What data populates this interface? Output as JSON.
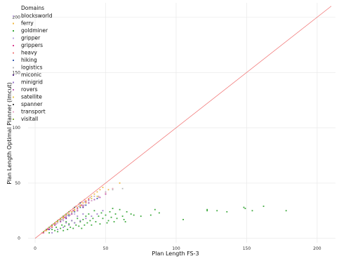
{
  "chart_data": {
    "type": "scatter",
    "title": "",
    "xlabel": "Plan Length FS-3",
    "ylabel": "Plan Length Optimal Planner (lmcut)",
    "xlim": [
      -5,
      213
    ],
    "ylim": [
      -4,
      213
    ],
    "x_ticks": [
      0,
      50,
      100,
      150,
      200
    ],
    "y_ticks": [
      0,
      50,
      100,
      150,
      200
    ],
    "grid": true,
    "legend": {
      "title": "Domains",
      "placement": "top-left"
    },
    "reference_line": {
      "from": [
        0,
        0
      ],
      "to": [
        210,
        210
      ],
      "color": "#f06a6a"
    },
    "series": [
      {
        "name": "blocksworld",
        "color": "#b8a0d8",
        "points": [
          [
            8,
            8
          ],
          [
            10,
            10
          ],
          [
            12,
            12
          ],
          [
            14,
            12
          ],
          [
            16,
            14
          ],
          [
            18,
            16
          ],
          [
            20,
            18
          ],
          [
            22,
            20
          ],
          [
            24,
            22
          ],
          [
            26,
            24
          ],
          [
            28,
            26
          ],
          [
            30,
            28
          ],
          [
            32,
            30
          ],
          [
            34,
            30
          ],
          [
            36,
            32
          ],
          [
            38,
            34
          ],
          [
            40,
            36
          ],
          [
            42,
            38
          ],
          [
            20,
            16
          ],
          [
            24,
            20
          ],
          [
            28,
            22
          ]
        ]
      },
      {
        "name": "ferry",
        "color": "#f0b840",
        "points": [
          [
            6,
            6
          ],
          [
            8,
            7
          ],
          [
            10,
            9
          ],
          [
            12,
            11
          ],
          [
            14,
            13
          ],
          [
            16,
            15
          ],
          [
            18,
            17
          ],
          [
            20,
            19
          ],
          [
            22,
            21
          ],
          [
            24,
            22
          ],
          [
            26,
            24
          ],
          [
            28,
            26
          ],
          [
            30,
            28
          ],
          [
            32,
            30
          ],
          [
            34,
            32
          ],
          [
            36,
            34
          ],
          [
            38,
            36
          ],
          [
            40,
            38
          ],
          [
            42,
            40
          ],
          [
            44,
            42
          ],
          [
            46,
            44
          ],
          [
            48,
            46
          ],
          [
            50,
            40
          ],
          [
            52,
            44
          ],
          [
            55,
            45
          ],
          [
            60,
            50
          ]
        ]
      },
      {
        "name": "goldminer",
        "color": "#3aa83a",
        "points": [
          [
            10,
            5
          ],
          [
            12,
            8
          ],
          [
            14,
            7
          ],
          [
            15,
            10
          ],
          [
            16,
            6
          ],
          [
            18,
            9
          ],
          [
            19,
            12
          ],
          [
            20,
            7
          ],
          [
            21,
            11
          ],
          [
            22,
            15
          ],
          [
            23,
            8
          ],
          [
            24,
            13
          ],
          [
            25,
            10
          ],
          [
            26,
            16
          ],
          [
            27,
            9
          ],
          [
            28,
            14
          ],
          [
            29,
            12
          ],
          [
            30,
            18
          ],
          [
            31,
            11
          ],
          [
            32,
            15
          ],
          [
            33,
            9
          ],
          [
            34,
            17
          ],
          [
            35,
            12
          ],
          [
            36,
            20
          ],
          [
            37,
            14
          ],
          [
            38,
            22
          ],
          [
            39,
            16
          ],
          [
            40,
            12
          ],
          [
            41,
            18
          ],
          [
            42,
            25
          ],
          [
            43,
            15
          ],
          [
            45,
            20
          ],
          [
            46,
            13
          ],
          [
            47,
            23
          ],
          [
            48,
            18
          ],
          [
            50,
            21
          ],
          [
            51,
            14
          ],
          [
            52,
            16
          ],
          [
            53,
            24
          ],
          [
            54,
            19
          ],
          [
            55,
            27
          ],
          [
            56,
            15
          ],
          [
            57,
            22
          ],
          [
            58,
            18
          ],
          [
            60,
            26
          ],
          [
            62,
            20
          ],
          [
            63,
            17
          ],
          [
            64,
            15
          ],
          [
            65,
            24
          ],
          [
            68,
            22
          ],
          [
            70,
            21
          ],
          [
            75,
            20
          ],
          [
            82,
            21
          ],
          [
            85,
            26
          ],
          [
            88,
            23
          ],
          [
            105,
            17
          ],
          [
            122,
            26
          ],
          [
            122,
            25
          ],
          [
            129,
            25
          ],
          [
            136,
            24
          ],
          [
            148,
            28
          ],
          [
            149,
            27
          ],
          [
            154,
            25
          ],
          [
            162,
            29
          ],
          [
            178,
            25
          ]
        ]
      },
      {
        "name": "gripper",
        "color": "#b8a8e0",
        "points": [
          [
            11,
            9
          ],
          [
            15,
            13
          ],
          [
            19,
            17
          ],
          [
            23,
            21
          ],
          [
            27,
            25
          ],
          [
            31,
            29
          ],
          [
            35,
            33
          ],
          [
            39,
            37
          ]
        ]
      },
      {
        "name": "grippers",
        "color": "#d84090",
        "points": [
          [
            6,
            5
          ],
          [
            9,
            8
          ],
          [
            12,
            10
          ],
          [
            15,
            13
          ],
          [
            18,
            16
          ],
          [
            21,
            19
          ],
          [
            24,
            22
          ],
          [
            27,
            25
          ],
          [
            30,
            27
          ],
          [
            33,
            30
          ],
          [
            36,
            33
          ],
          [
            38,
            35
          ]
        ]
      },
      {
        "name": "heavy",
        "color": "#f08080",
        "points": [
          [
            5,
            5
          ],
          [
            7,
            7
          ],
          [
            9,
            9
          ],
          [
            11,
            11
          ],
          [
            13,
            13
          ],
          [
            15,
            15
          ],
          [
            17,
            17
          ],
          [
            19,
            19
          ],
          [
            21,
            21
          ],
          [
            23,
            23
          ],
          [
            25,
            25
          ],
          [
            27,
            27
          ],
          [
            29,
            29
          ],
          [
            31,
            31
          ],
          [
            33,
            33
          ],
          [
            35,
            35
          ]
        ]
      },
      {
        "name": "hiking",
        "color": "#3a5fb0",
        "points": [
          [
            20,
            18
          ],
          [
            24,
            21
          ],
          [
            28,
            24
          ],
          [
            32,
            28
          ],
          [
            36,
            30
          ],
          [
            40,
            34
          ],
          [
            44,
            36
          ]
        ]
      },
      {
        "name": "logistics",
        "color": "#b8b8b8",
        "points": [
          [
            18,
            16
          ],
          [
            22,
            20
          ],
          [
            26,
            23
          ],
          [
            30,
            26
          ],
          [
            34,
            30
          ],
          [
            38,
            32
          ],
          [
            45,
            38
          ],
          [
            50,
            42
          ],
          [
            55,
            44
          ],
          [
            62,
            45
          ]
        ]
      },
      {
        "name": "miconic",
        "color": "#5a2a8a",
        "points": [
          [
            10,
            8
          ],
          [
            14,
            12
          ],
          [
            18,
            15
          ],
          [
            22,
            18
          ],
          [
            26,
            22
          ],
          [
            30,
            25
          ],
          [
            34,
            28
          ],
          [
            38,
            32
          ],
          [
            42,
            35
          ]
        ]
      },
      {
        "name": "minigrid",
        "color": "#9a78c8",
        "points": [
          [
            12,
            5
          ],
          [
            16,
            8
          ],
          [
            20,
            10
          ],
          [
            24,
            12
          ],
          [
            28,
            14
          ],
          [
            32,
            16
          ],
          [
            36,
            18
          ],
          [
            40,
            20
          ],
          [
            44,
            22
          ],
          [
            48,
            25
          ],
          [
            22,
            14
          ],
          [
            26,
            16
          ],
          [
            30,
            20
          ],
          [
            34,
            22
          ]
        ]
      },
      {
        "name": "rovers",
        "color": "#c060b8",
        "points": [
          [
            14,
            12
          ],
          [
            18,
            15
          ],
          [
            22,
            19
          ],
          [
            26,
            22
          ],
          [
            30,
            25
          ],
          [
            34,
            29
          ],
          [
            38,
            32
          ],
          [
            42,
            35
          ],
          [
            46,
            37
          ],
          [
            50,
            40
          ]
        ]
      },
      {
        "name": "satellite",
        "color": "#e8c850",
        "points": [
          [
            12,
            11
          ],
          [
            16,
            15
          ],
          [
            20,
            18
          ],
          [
            24,
            22
          ],
          [
            28,
            25
          ],
          [
            32,
            29
          ],
          [
            36,
            32
          ],
          [
            40,
            36
          ],
          [
            44,
            38
          ]
        ]
      },
      {
        "name": "spanner",
        "color": "#4a4a4a",
        "points": [
          [
            8,
            8
          ],
          [
            12,
            12
          ],
          [
            16,
            16
          ],
          [
            20,
            20
          ],
          [
            24,
            24
          ],
          [
            28,
            28
          ],
          [
            32,
            32
          ]
        ]
      },
      {
        "name": "transport",
        "color": "#e8a8c8",
        "points": [
          [
            10,
            9
          ],
          [
            15,
            13
          ],
          [
            20,
            17
          ],
          [
            25,
            21
          ],
          [
            30,
            26
          ],
          [
            35,
            30
          ],
          [
            40,
            34
          ],
          [
            45,
            37
          ],
          [
            50,
            41
          ],
          [
            55,
            45
          ]
        ]
      },
      {
        "name": "visitall",
        "color": "#88b040",
        "points": [
          [
            6,
            6
          ],
          [
            8,
            8
          ],
          [
            10,
            10
          ],
          [
            12,
            12
          ],
          [
            14,
            14
          ],
          [
            16,
            16
          ],
          [
            18,
            18
          ],
          [
            20,
            20
          ],
          [
            22,
            22
          ],
          [
            24,
            24
          ]
        ]
      }
    ]
  }
}
